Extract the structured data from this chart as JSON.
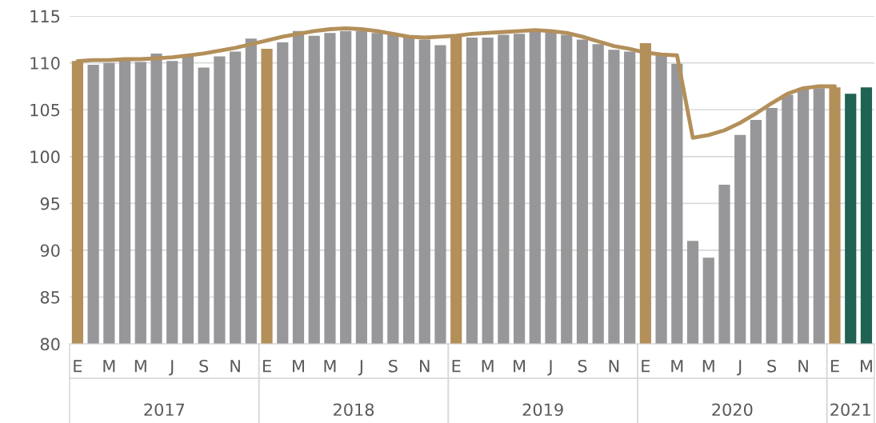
{
  "chart_data": {
    "type": "bar",
    "categories": [
      "E",
      null,
      "M",
      null,
      "M",
      null,
      "J",
      null,
      "S",
      null,
      "N",
      null,
      "E",
      null,
      "M",
      null,
      "M",
      null,
      "J",
      null,
      "S",
      null,
      "N",
      null,
      "E",
      null,
      "M",
      null,
      "M",
      null,
      "J",
      null,
      "S",
      null,
      "N",
      null,
      "E",
      null,
      "M",
      null,
      "M",
      null,
      "J",
      null,
      "S",
      null,
      "N",
      null,
      "E",
      null,
      "M"
    ],
    "series": [
      {
        "colors": [
          "#b38f5a",
          "#97979a",
          "#97979a",
          "#97979a",
          "#97979a",
          "#97979a",
          "#97979a",
          "#97979a",
          "#97979a",
          "#97979a",
          "#97979a",
          "#97979a",
          "#b38f5a",
          "#97979a",
          "#97979a",
          "#97979a",
          "#97979a",
          "#97979a",
          "#97979a",
          "#97979a",
          "#97979a",
          "#97979a",
          "#97979a",
          "#97979a",
          "#b38f5a",
          "#97979a",
          "#97979a",
          "#97979a",
          "#97979a",
          "#97979a",
          "#97979a",
          "#97979a",
          "#97979a",
          "#97979a",
          "#97979a",
          "#97979a",
          "#b38f5a",
          "#97979a",
          "#97979a",
          "#97979a",
          "#97979a",
          "#97979a",
          "#97979a",
          "#97979a",
          "#97979a",
          "#97979a",
          "#97979a",
          "#97979a",
          "#b38f5a",
          "#206254",
          "#206254"
        ],
        "values": [
          110.2,
          109.8,
          110.0,
          110.5,
          110.1,
          111.0,
          110.2,
          110.9,
          109.5,
          110.7,
          111.2,
          112.6,
          111.5,
          112.2,
          113.4,
          112.9,
          113.2,
          113.4,
          113.4,
          113.2,
          113.0,
          112.7,
          112.5,
          111.9,
          112.9,
          112.7,
          112.7,
          113.0,
          113.1,
          113.3,
          113.3,
          113.0,
          112.5,
          112.0,
          111.4,
          111.2,
          112.1,
          110.8,
          109.9,
          91.0,
          89.2,
          97.0,
          102.3,
          103.9,
          105.2,
          106.6,
          107.3,
          107.3,
          107.4,
          106.7,
          107.4
        ]
      },
      {
        "type": "line",
        "color": "#b38f5a",
        "values": [
          110.2,
          110.3,
          110.3,
          110.4,
          110.4,
          110.5,
          110.6,
          110.8,
          111.0,
          111.3,
          111.6,
          112.0,
          112.4,
          112.8,
          113.1,
          113.4,
          113.6,
          113.7,
          113.6,
          113.4,
          113.1,
          112.8,
          112.7,
          112.8,
          112.9,
          113.1,
          113.2,
          113.3,
          113.4,
          113.5,
          113.4,
          113.2,
          112.8,
          112.3,
          111.8,
          111.5,
          111.1,
          110.9,
          110.8,
          102.0,
          102.3,
          102.8,
          103.6,
          104.6,
          105.7,
          106.7,
          107.3,
          107.5,
          107.5,
          null,
          null
        ]
      }
    ],
    "annotations": [
      "2017",
      "2018",
      "2019",
      "2020",
      "2021"
    ],
    "ylim": [
      80,
      115
    ],
    "yticks": [
      80,
      85,
      90,
      95,
      100,
      105,
      110,
      115
    ],
    "grid": "y",
    "legend": false
  }
}
